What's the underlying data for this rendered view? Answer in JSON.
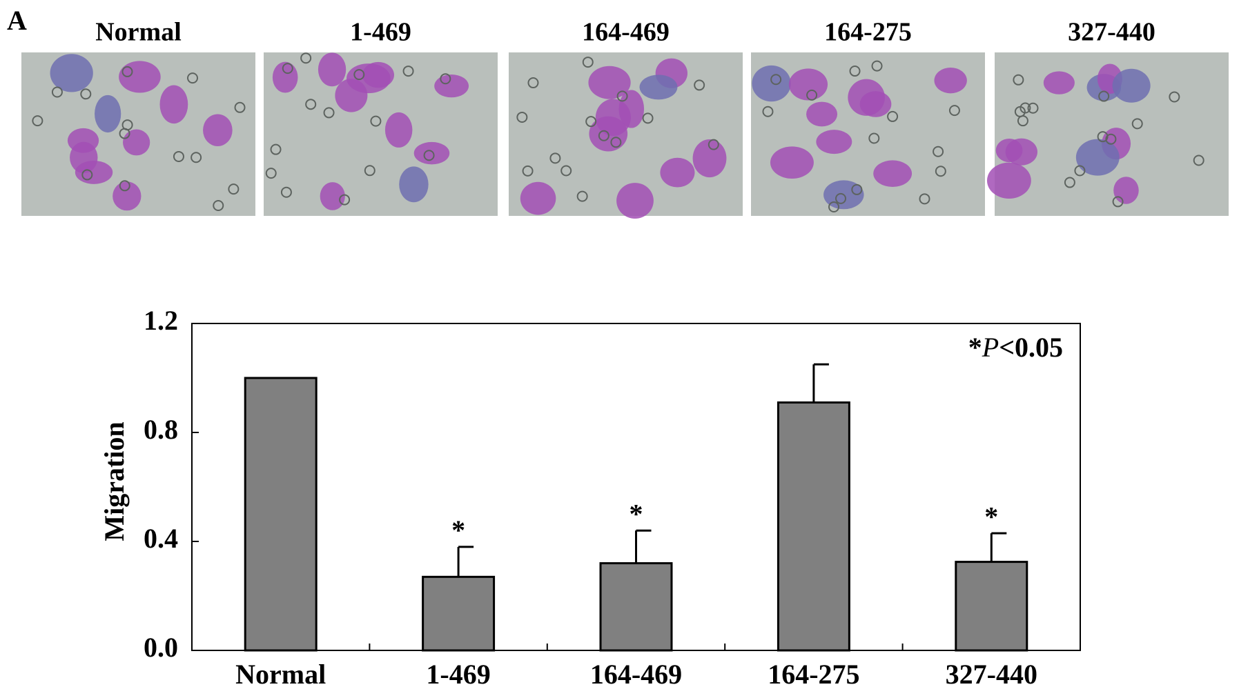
{
  "panel_label": "A",
  "images": [
    {
      "label": "Normal"
    },
    {
      "label": "1-469"
    },
    {
      "label": "164-469"
    },
    {
      "label": "164-275"
    },
    {
      "label": "327-440"
    }
  ],
  "chart_data": {
    "type": "bar",
    "categories": [
      "Normal",
      "1-469",
      "164-469",
      "164-275",
      "327-440"
    ],
    "values": [
      1.0,
      0.27,
      0.32,
      0.91,
      0.325
    ],
    "errors": [
      null,
      0.11,
      0.12,
      0.14,
      0.105
    ],
    "significance": [
      null,
      "*",
      "*",
      null,
      "*"
    ],
    "color": "#808080",
    "y_label": "Migration",
    "annotation": [
      "*",
      "P",
      "<0.05"
    ],
    "ylim": [
      0,
      1.2
    ],
    "yticks": [
      {
        "value": 0,
        "label": "0.0"
      },
      0.4,
      0.8,
      1.2
    ]
  }
}
